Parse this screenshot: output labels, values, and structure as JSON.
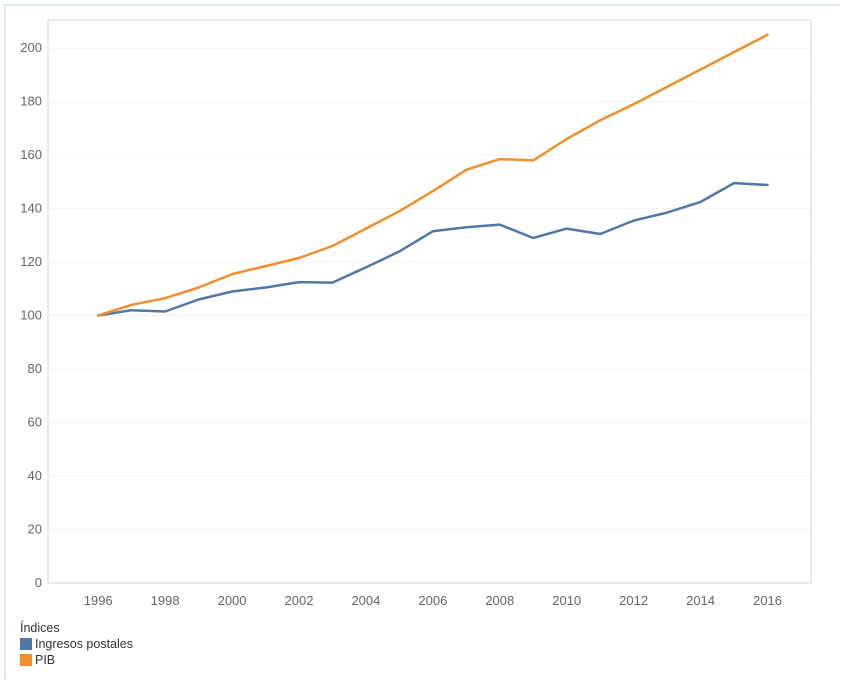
{
  "chart_data": {
    "type": "line",
    "x": [
      1996,
      1997,
      1998,
      1999,
      2000,
      2001,
      2002,
      2003,
      2004,
      2005,
      2006,
      2007,
      2008,
      2009,
      2010,
      2011,
      2012,
      2013,
      2014,
      2015,
      2016
    ],
    "series": [
      {
        "name": "Ingresos postales",
        "color": "#4e79a7",
        "values": [
          100,
          102,
          101.5,
          106,
          109,
          110.5,
          112.5,
          112.3,
          118,
          124,
          131.5,
          133,
          134,
          129,
          132.5,
          130.5,
          135.5,
          138.5,
          142.5,
          149.5,
          148.8
        ]
      },
      {
        "name": "PIB",
        "color": "#f28e2b",
        "values": [
          100,
          104,
          106.5,
          110.5,
          115.5,
          118.5,
          121.5,
          126,
          132.5,
          139,
          146.5,
          154.5,
          158.5,
          158,
          166,
          173,
          179,
          185.5,
          192,
          198.5,
          205
        ]
      }
    ],
    "y_ticks": [
      0,
      20,
      40,
      60,
      80,
      100,
      120,
      140,
      160,
      180,
      200
    ],
    "x_ticks": [
      1996,
      1998,
      2000,
      2002,
      2004,
      2006,
      2008,
      2010,
      2012,
      2014,
      2016
    ],
    "xlim": [
      1994.5,
      2017.3
    ],
    "ylim": [
      0,
      210.5
    ],
    "grid": true,
    "legend_position": "bottom-left",
    "legend_title": "Índices"
  }
}
